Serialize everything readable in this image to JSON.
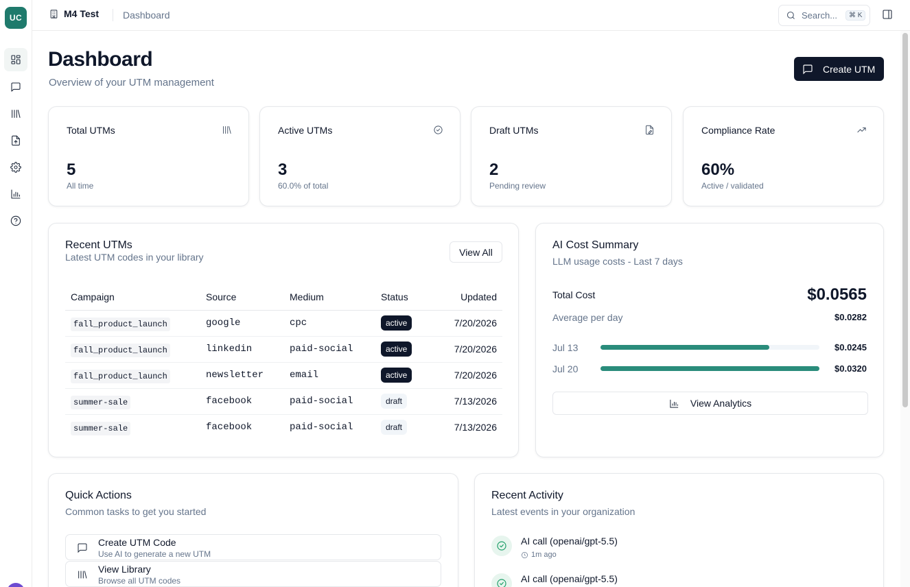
{
  "sidebar": {
    "org_initials": "UC",
    "items": [
      {
        "name": "dashboard",
        "icon": "dashboard-icon",
        "active": true
      },
      {
        "name": "chat",
        "icon": "chat-icon",
        "active": false
      },
      {
        "name": "library",
        "icon": "library-icon",
        "active": false
      },
      {
        "name": "import",
        "icon": "file-upload-icon",
        "active": false
      },
      {
        "name": "settings",
        "icon": "gear-icon",
        "active": false
      },
      {
        "name": "analytics",
        "icon": "bar-chart-icon",
        "active": false
      },
      {
        "name": "help",
        "icon": "help-icon",
        "active": false
      }
    ]
  },
  "topbar": {
    "org_name": "M4 Test",
    "breadcrumb": "Dashboard",
    "search_placeholder": "Search...",
    "search_shortcut": "⌘ K"
  },
  "header": {
    "title": "Dashboard",
    "subtitle": "Overview of your UTM management",
    "create_button": "Create UTM"
  },
  "stats": [
    {
      "title": "Total UTMs",
      "value": "5",
      "sub": "All time",
      "icon": "library-icon"
    },
    {
      "title": "Active UTMs",
      "value": "3",
      "sub": "60.0% of total",
      "icon": "check-circle-icon"
    },
    {
      "title": "Draft UTMs",
      "value": "2",
      "sub": "Pending review",
      "icon": "file-edit-icon"
    },
    {
      "title": "Compliance Rate",
      "value": "60%",
      "sub": "Active / validated",
      "icon": "trending-up-icon"
    }
  ],
  "recent_utms": {
    "title": "Recent UTMs",
    "subtitle": "Latest UTM codes in your library",
    "view_all": "View All",
    "columns": [
      "Campaign",
      "Source",
      "Medium",
      "Status",
      "Updated"
    ],
    "rows": [
      {
        "campaign": "fall_product_launch",
        "source": "google",
        "medium": "cpc",
        "status": "active",
        "updated": "7/20/2026"
      },
      {
        "campaign": "fall_product_launch",
        "source": "linkedin",
        "medium": "paid-social",
        "status": "active",
        "updated": "7/20/2026"
      },
      {
        "campaign": "fall_product_launch",
        "source": "newsletter",
        "medium": "email",
        "status": "active",
        "updated": "7/20/2026"
      },
      {
        "campaign": "summer-sale",
        "source": "facebook",
        "medium": "paid-social",
        "status": "draft",
        "updated": "7/13/2026"
      },
      {
        "campaign": "summer-sale",
        "source": "facebook",
        "medium": "paid-social",
        "status": "draft",
        "updated": "7/13/2026"
      }
    ]
  },
  "ai_cost": {
    "title": "AI Cost Summary",
    "subtitle": "LLM usage costs - Last 7 days",
    "total_label": "Total Cost",
    "total_value": "$0.0565",
    "avg_label": "Average per day",
    "avg_value": "$0.0282",
    "days": [
      {
        "date": "Jul 13",
        "amount": "$0.0245",
        "fraction": 0.77
      },
      {
        "date": "Jul 20",
        "amount": "$0.0320",
        "fraction": 1.0
      }
    ],
    "analytics_button": "View Analytics",
    "accent_color": "#2a8c7b"
  },
  "quick_actions": {
    "title": "Quick Actions",
    "subtitle": "Common tasks to get you started",
    "items": [
      {
        "title": "Create UTM Code",
        "desc": "Use AI to generate a new UTM",
        "icon": "chat-icon"
      },
      {
        "title": "View Library",
        "desc": "Browse all UTM codes",
        "icon": "library-icon"
      }
    ]
  },
  "recent_activity": {
    "title": "Recent Activity",
    "subtitle": "Latest events in your organization",
    "items": [
      {
        "title": "AI call (openai/gpt-5.5)",
        "time": "1m ago",
        "icon": "check-circle-icon"
      },
      {
        "title": "AI call (openai/gpt-5.5)",
        "time": "",
        "icon": "check-circle-icon"
      }
    ]
  },
  "colors": {
    "brand": "#1f7a6c",
    "primary_button": "#0f172a",
    "success": "#22a06b"
  }
}
